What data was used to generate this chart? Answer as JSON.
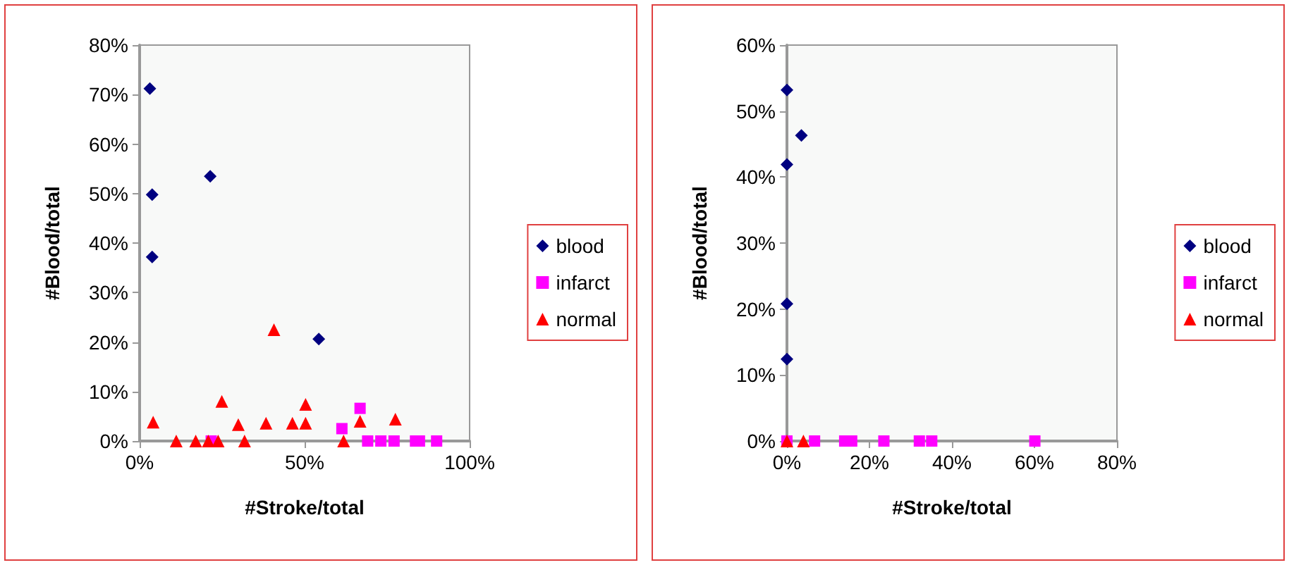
{
  "chart_data": [
    {
      "type": "scatter",
      "xlabel": "#Stroke/total",
      "ylabel": "#Blood/total",
      "xlim": [
        0,
        100
      ],
      "ylim": [
        0,
        80
      ],
      "xticks": [
        {
          "value": 0,
          "label": "0%"
        },
        {
          "value": 50,
          "label": "50%"
        },
        {
          "value": 100,
          "label": "100%"
        }
      ],
      "yticks": [
        {
          "value": 0,
          "label": "0%"
        },
        {
          "value": 10,
          "label": "10%"
        },
        {
          "value": 20,
          "label": "20%"
        },
        {
          "value": 30,
          "label": "30%"
        },
        {
          "value": 40,
          "label": "40%"
        },
        {
          "value": 50,
          "label": "50%"
        },
        {
          "value": 60,
          "label": "60%"
        },
        {
          "value": 70,
          "label": "70%"
        },
        {
          "value": 80,
          "label": "80%"
        }
      ],
      "grid": false,
      "legend": "right",
      "series": [
        {
          "name": "blood",
          "color": "#000080",
          "marker": "diamond",
          "x": [
            3.1,
            3.8,
            3.8,
            21.4,
            54.3
          ],
          "values": [
            71.2,
            49.8,
            37.2,
            53.5,
            20.6
          ]
        },
        {
          "name": "infarct",
          "color": "#ff00ff",
          "marker": "square",
          "x": [
            21.7,
            61.3,
            66.8,
            69.1,
            73.1,
            77.1,
            83.6,
            84.8,
            90.0
          ],
          "values": [
            0,
            2.5,
            6.6,
            0,
            0,
            0,
            0,
            0,
            0
          ]
        },
        {
          "name": "normal",
          "color": "#ff0000",
          "marker": "triangle",
          "x": [
            4.1,
            11.1,
            17.0,
            20.8,
            23.8,
            24.9,
            29.9,
            31.8,
            38.3,
            40.7,
            46.3,
            50.3,
            50.3,
            61.8,
            66.8,
            77.5
          ],
          "values": [
            3.8,
            0,
            0,
            0,
            0,
            8.0,
            3.3,
            0,
            3.6,
            22.5,
            3.6,
            7.4,
            3.6,
            0,
            4.0,
            4.4
          ]
        }
      ]
    },
    {
      "type": "scatter",
      "xlabel": "#Stroke/total",
      "ylabel": "#Blood/total",
      "xlim": [
        0,
        80
      ],
      "ylim": [
        0,
        60
      ],
      "xticks": [
        {
          "value": 0,
          "label": "0%"
        },
        {
          "value": 20,
          "label": "20%"
        },
        {
          "value": 40,
          "label": "40%"
        },
        {
          "value": 60,
          "label": "60%"
        },
        {
          "value": 80,
          "label": "80%"
        }
      ],
      "yticks": [
        {
          "value": 0,
          "label": "0%"
        },
        {
          "value": 10,
          "label": "10%"
        },
        {
          "value": 20,
          "label": "20%"
        },
        {
          "value": 30,
          "label": "30%"
        },
        {
          "value": 40,
          "label": "40%"
        },
        {
          "value": 50,
          "label": "50%"
        },
        {
          "value": 60,
          "label": "60%"
        }
      ],
      "grid": false,
      "legend": "right",
      "series": [
        {
          "name": "blood",
          "color": "#000080",
          "marker": "diamond",
          "x": [
            0,
            3.5,
            0,
            0,
            0
          ],
          "values": [
            53.2,
            46.3,
            41.9,
            20.8,
            12.4
          ]
        },
        {
          "name": "infarct",
          "color": "#ff00ff",
          "marker": "square",
          "x": [
            0,
            6.7,
            14.0,
            15.7,
            23.5,
            32.1,
            35.1,
            60.1
          ],
          "values": [
            0,
            0,
            0,
            0,
            0,
            0,
            0,
            0
          ]
        },
        {
          "name": "normal",
          "color": "#ff0000",
          "marker": "triangle",
          "x": [
            0,
            4.0
          ],
          "values": [
            0,
            0
          ]
        }
      ]
    }
  ]
}
